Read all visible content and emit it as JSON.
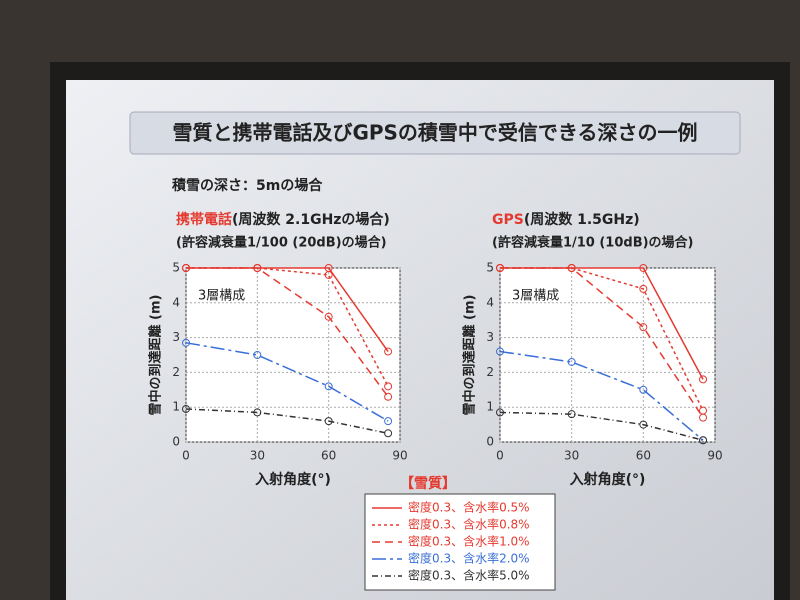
{
  "slide_title": "雪質と携帯電話及びGPSの積雪中で受信できる深さの一例",
  "condition": "積雪の深さ：5mの場合",
  "legend_title": "【雪質】",
  "chart_data": [
    {
      "type": "line",
      "title_prefix": "携帯電話",
      "title": "(周波数 2.1GHzの場合)",
      "subtitle": "(許容減衰量1/100 (20dB)の場合)",
      "annotation": "3層構成",
      "x_label": "入射角度(°)",
      "y_label": "雪中の到達距離 (m)",
      "x": [
        0,
        30,
        60,
        85
      ],
      "xlim": [
        0,
        90
      ],
      "xticks": [
        0,
        30,
        60,
        90
      ],
      "ylim": [
        0,
        5
      ],
      "yticks": [
        0,
        1,
        2,
        3,
        4,
        5
      ],
      "grid": true,
      "series": [
        {
          "name": "密度0.3、含水率0.5%",
          "color": "#e53a30",
          "dash": "none",
          "values": [
            5,
            5,
            5,
            2.6
          ]
        },
        {
          "name": "密度0.3、含水率0.8%",
          "color": "#e53a30",
          "dash": "3,3",
          "values": [
            5,
            5,
            4.8,
            1.6
          ]
        },
        {
          "name": "密度0.3、含水率1.0%",
          "color": "#e53a30",
          "dash": "8,5",
          "values": [
            5,
            5,
            3.6,
            1.3
          ]
        },
        {
          "name": "密度0.3、含水率2.0%",
          "color": "#3a6fd8",
          "dash": "14,4,3,4",
          "values": [
            2.85,
            2.5,
            1.6,
            0.6
          ]
        },
        {
          "name": "密度0.3、含水率5.0%",
          "color": "#333333",
          "dash": "6,3,1,3",
          "values": [
            0.95,
            0.85,
            0.6,
            0.25
          ]
        }
      ]
    },
    {
      "type": "line",
      "title_prefix": "GPS",
      "title": "(周波数 1.5GHz)",
      "subtitle": "(許容減衰量1/10 (10dB)の場合)",
      "annotation": "3層構成",
      "x_label": "入射角度(°)",
      "y_label": "雪中の到達距離 (m)",
      "x": [
        0,
        30,
        60,
        85
      ],
      "xlim": [
        0,
        90
      ],
      "xticks": [
        0,
        30,
        60,
        90
      ],
      "ylim": [
        0,
        5
      ],
      "yticks": [
        0,
        1,
        2,
        3,
        4,
        5
      ],
      "grid": true,
      "series": [
        {
          "color": "#e53a30",
          "dash": "none",
          "values": [
            5,
            5,
            5,
            1.8
          ]
        },
        {
          "color": "#e53a30",
          "dash": "3,3",
          "values": [
            5,
            5,
            4.4,
            0.9
          ]
        },
        {
          "color": "#e53a30",
          "dash": "8,5",
          "values": [
            5,
            5,
            3.3,
            0.7
          ]
        },
        {
          "color": "#3a6fd8",
          "dash": "14,4,3,4",
          "values": [
            2.6,
            2.3,
            1.5,
            0.05
          ]
        },
        {
          "color": "#333333",
          "dash": "6,3,1,3",
          "values": [
            0.85,
            0.8,
            0.5,
            0.05
          ]
        }
      ]
    }
  ]
}
